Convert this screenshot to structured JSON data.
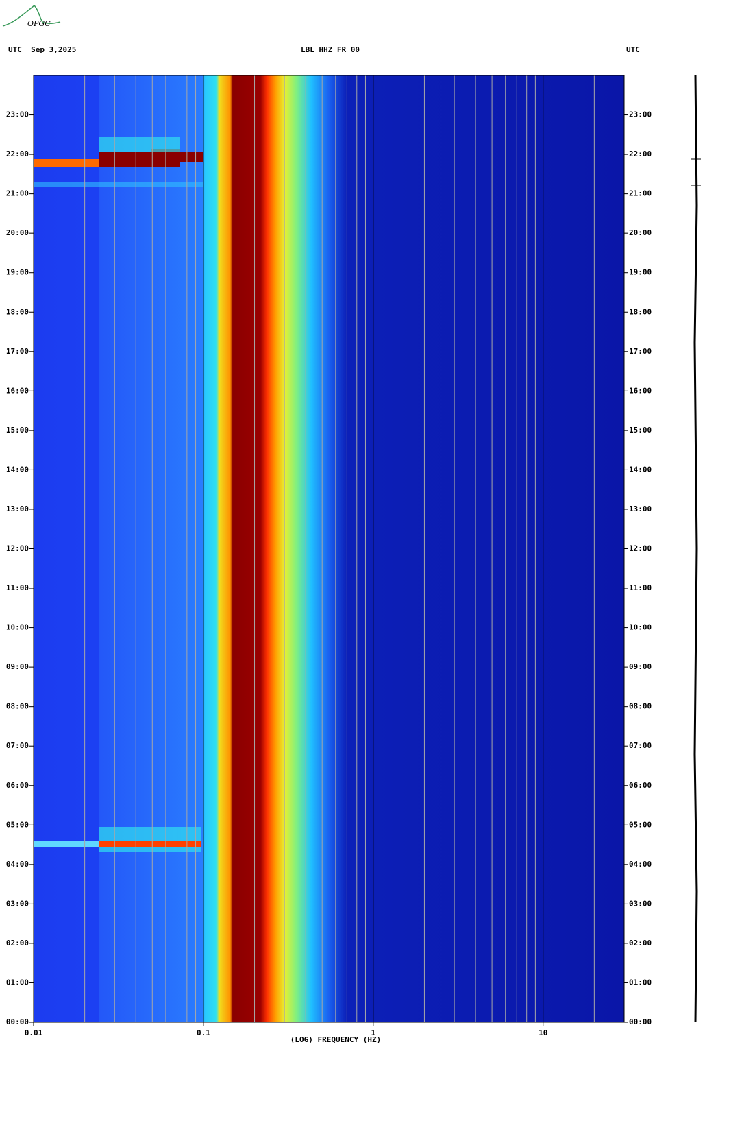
{
  "logo": "OPGC",
  "chart_data": {
    "type": "spectrogram",
    "title": "LBL HHZ FR 00",
    "left_header": "UTC  Sep 3,2025",
    "right_header": "UTC",
    "xlabel": "(LOG) FREQUENCY (HZ)",
    "xscale": "log",
    "xlim": [
      0.01,
      30
    ],
    "xticks": [
      {
        "value": 0.01,
        "label": "0.01"
      },
      {
        "value": 0.1,
        "label": "0.1"
      },
      1,
      10
    ],
    "xminorticks": [
      0.02,
      0.03,
      0.04,
      0.05,
      0.06,
      0.07,
      0.08,
      0.09,
      0.2,
      0.3,
      0.4,
      0.5,
      0.6,
      0.7,
      0.8,
      0.9,
      2,
      3,
      4,
      5,
      6,
      7,
      8,
      9,
      20
    ],
    "ylim": [
      0,
      24
    ],
    "yticks": [
      {
        "value": 0,
        "label": "00:00"
      },
      {
        "value": 1,
        "label": "01:00"
      },
      {
        "value": 2,
        "label": "02:00"
      },
      {
        "value": 3,
        "label": "03:00"
      },
      {
        "value": 4,
        "label": "04:00"
      },
      {
        "value": 5,
        "label": "05:00"
      },
      {
        "value": 6,
        "label": "06:00"
      },
      {
        "value": 7,
        "label": "07:00"
      },
      {
        "value": 8,
        "label": "08:00"
      },
      {
        "value": 9,
        "label": "09:00"
      },
      {
        "value": 10,
        "label": "10:00"
      },
      {
        "value": 11,
        "label": "11:00"
      },
      {
        "value": 12,
        "label": "12:00"
      },
      {
        "value": 13,
        "label": "13:00"
      },
      {
        "value": 14,
        "label": "14:00"
      },
      {
        "value": 15,
        "label": "15:00"
      },
      {
        "value": 16,
        "label": "16:00"
      },
      {
        "value": 17,
        "label": "17:00"
      },
      {
        "value": 18,
        "label": "18:00"
      },
      {
        "value": 19,
        "label": "19:00"
      },
      {
        "value": 20,
        "label": "20:00"
      },
      {
        "value": 21,
        "label": "21:00"
      },
      {
        "value": 22,
        "label": "22:00"
      },
      {
        "value": 23,
        "label": "23:00"
      }
    ],
    "grid_color": "#a8a8a8"
  }
}
